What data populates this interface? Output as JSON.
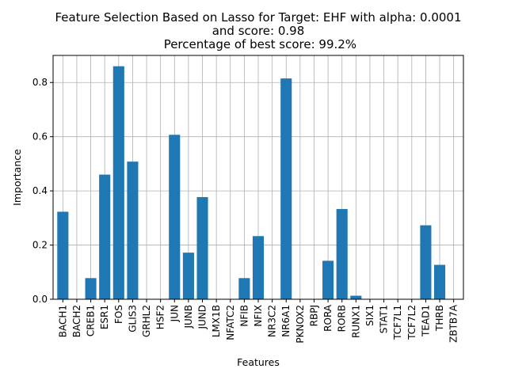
{
  "chart_data": {
    "type": "bar",
    "title_lines": [
      "Feature Selection Based on Lasso for Target: EHF with alpha: 0.0001",
      "and score: 0.98",
      " Percentage of best score: 99.2%"
    ],
    "xlabel": "Features",
    "ylabel": "Importance",
    "categories": [
      "BACH1",
      "BACH2",
      "CREB1",
      "ESR1",
      "FOS",
      "GLIS3",
      "GRHL2",
      "HSF2",
      "JUN",
      "JUNB",
      "JUND",
      "LMX1B",
      "NFATC2",
      "NFIB",
      "NFIX",
      "NR3C2",
      "NR6A1",
      "PKNOX2",
      "RBPJ",
      "RORA",
      "RORB",
      "RUNX1",
      "SIX1",
      "STAT1",
      "TCF7L1",
      "TCF7L2",
      "TEAD1",
      "THRB",
      "ZBTB7A"
    ],
    "values": [
      0.323,
      0.0,
      0.078,
      0.46,
      0.86,
      0.508,
      0.0,
      0.0,
      0.607,
      0.172,
      0.377,
      0.0,
      0.0,
      0.078,
      0.233,
      0.0,
      0.815,
      0.0,
      0.0,
      0.142,
      0.333,
      0.013,
      0.0,
      0.0,
      0.0,
      0.0,
      0.273,
      0.127,
      0.0
    ],
    "yticks": [
      "0.0",
      "0.2",
      "0.4",
      "0.6",
      "0.8"
    ],
    "ylim": [
      0,
      0.9
    ],
    "bar_color": "#1f77b4",
    "grid": true
  }
}
